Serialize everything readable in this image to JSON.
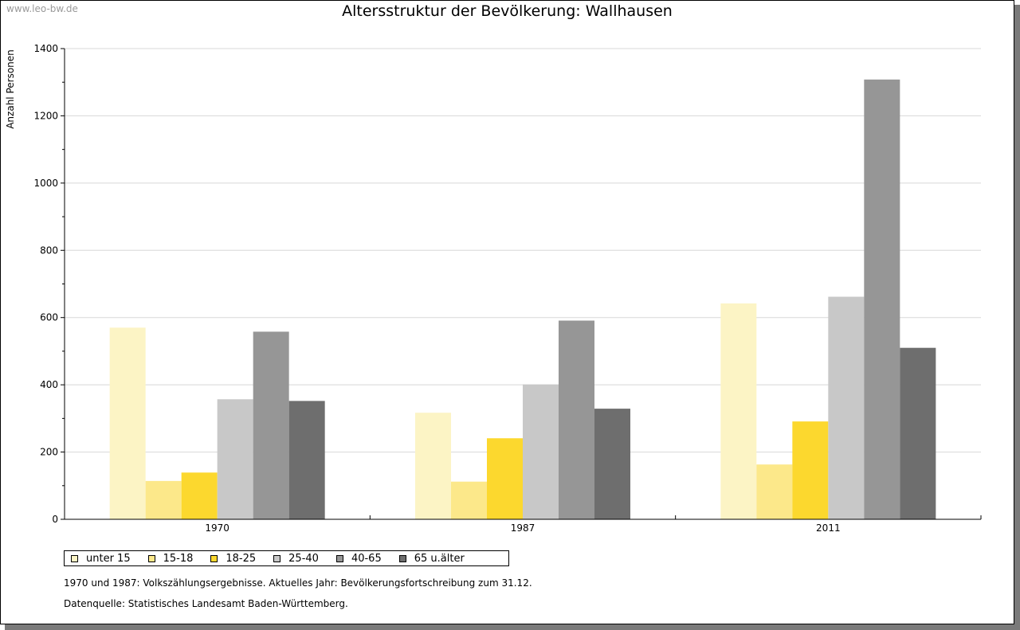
{
  "source_label": "www.leo-bw.de",
  "footnotes": [
    "1970 und 1987: Volkszählungsergebnisse. Aktuelles Jahr: Bevölkerungsfortschreibung zum 31.12.",
    "Datenquelle: Statistisches Landesamt Baden-Württemberg."
  ],
  "chart_data": {
    "type": "bar",
    "title": "Altersstruktur der Bevölkerung: Wallhausen",
    "xlabel": "",
    "ylabel": "Anzahl Personen",
    "categories": [
      "1970",
      "1987",
      "2011"
    ],
    "ylim": [
      0,
      1400
    ],
    "yticks": [
      0,
      200,
      400,
      600,
      800,
      1000,
      1200,
      1400
    ],
    "grid": true,
    "legend_position": "bottom-left",
    "series": [
      {
        "name": "unter 15",
        "color": "#fcf4c5",
        "values": [
          570,
          317,
          642
        ]
      },
      {
        "name": "15-18",
        "color": "#fce88a",
        "values": [
          114,
          112,
          163
        ]
      },
      {
        "name": "18-25",
        "color": "#fcd82e",
        "values": [
          139,
          241,
          291
        ]
      },
      {
        "name": "25-40",
        "color": "#c8c8c8",
        "values": [
          357,
          401,
          662
        ]
      },
      {
        "name": "40-65",
        "color": "#969696",
        "values": [
          558,
          591,
          1308
        ]
      },
      {
        "name": "65 u.älter",
        "color": "#6e6e6e",
        "values": [
          352,
          329,
          510
        ]
      }
    ]
  }
}
